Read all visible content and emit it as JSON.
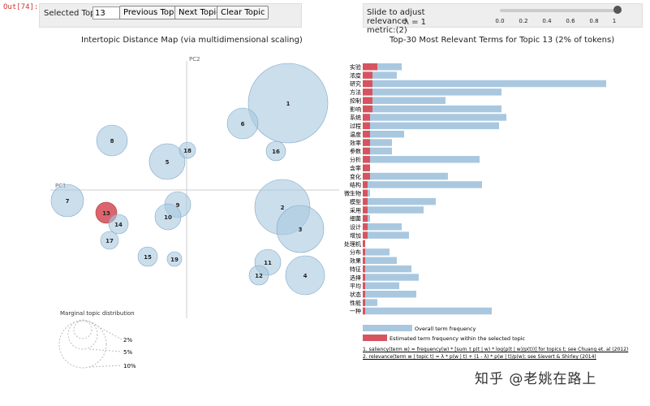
{
  "out_label": "Out[74]:",
  "controls": {
    "selected_topic_label": "Selected Topic:",
    "selected_topic_value": "13",
    "prev_label": "Previous Topic",
    "next_label": "Next Topic",
    "clear_label": "Clear Topic"
  },
  "slider": {
    "text_line1": "Slide to adjust relevance",
    "text_line2": "metric:(2)",
    "lambda_text": "λ = 1",
    "value": 1,
    "ticks": [
      "0.0",
      "0.2",
      "0.4",
      "0.6",
      "0.8",
      "1"
    ]
  },
  "left_panel": {
    "title": "Intertopic Distance Map (via multidimensional scaling)",
    "pc1_label": "PC1",
    "pc2_label": "PC2",
    "marginal_title": "Marginal topic distribution",
    "marginal_labels": [
      "2%",
      "5%",
      "10%"
    ],
    "selected_color": "#d6545f",
    "bubble_color": "#a9c8e0",
    "topics": [
      {
        "id": "1",
        "selected": false
      },
      {
        "id": "2",
        "selected": false
      },
      {
        "id": "3",
        "selected": false
      },
      {
        "id": "4",
        "selected": false
      },
      {
        "id": "5",
        "selected": false
      },
      {
        "id": "6",
        "selected": false
      },
      {
        "id": "7",
        "selected": false
      },
      {
        "id": "8",
        "selected": false
      },
      {
        "id": "9",
        "selected": false
      },
      {
        "id": "10",
        "selected": false
      },
      {
        "id": "11",
        "selected": false
      },
      {
        "id": "12",
        "selected": false
      },
      {
        "id": "13",
        "selected": true
      },
      {
        "id": "14",
        "selected": false
      },
      {
        "id": "15",
        "selected": false
      },
      {
        "id": "16",
        "selected": false
      },
      {
        "id": "17",
        "selected": false
      },
      {
        "id": "18",
        "selected": false
      },
      {
        "id": "19",
        "selected": false
      }
    ]
  },
  "chart_data": {
    "type": "bar",
    "title": "Top-30 Most Relevant Terms for Topic 13 (2% of tokens)",
    "categories": [
      "实验",
      "浓度",
      "研究",
      "方法",
      "控制",
      "影响",
      "系统",
      "过程",
      "温度",
      "效率",
      "参数",
      "分析",
      "含率",
      "变化",
      "结构",
      "微生物",
      "模型",
      "采用",
      "细菌",
      "设计",
      "增加",
      "处理机",
      "分布",
      "效果",
      "特征",
      "选择",
      "平均",
      "状态",
      "性能",
      "一种"
    ],
    "series": [
      {
        "name": "Overall term frequency",
        "color": "#a9c8e0",
        "values": [
          0.16,
          0.14,
          1.0,
          0.57,
          0.34,
          0.57,
          0.59,
          0.56,
          0.17,
          0.12,
          0.12,
          0.48,
          0.03,
          0.35,
          0.49,
          0.03,
          0.3,
          0.25,
          0.03,
          0.16,
          0.19,
          0.01,
          0.11,
          0.14,
          0.2,
          0.23,
          0.15,
          0.22,
          0.06,
          0.53
        ]
      },
      {
        "name": "Estimated term frequency within the selected topic",
        "color": "#d6545f",
        "values": [
          0.06,
          0.04,
          0.04,
          0.04,
          0.04,
          0.04,
          0.03,
          0.03,
          0.03,
          0.03,
          0.03,
          0.03,
          0.03,
          0.03,
          0.02,
          0.02,
          0.02,
          0.02,
          0.02,
          0.02,
          0.02,
          0.01,
          0.01,
          0.01,
          0.01,
          0.01,
          0.01,
          0.01,
          0.01,
          0.01
        ]
      }
    ],
    "legend": [
      "Overall term frequency",
      "Estimated term frequency within the selected topic"
    ]
  },
  "refs": {
    "line1": "1. saliency(term w) = frequency(w) * [sum_t p(t | w) * log(p(t | w)/p(t))] for topics t; see Chuang et. al (2012)",
    "line2": "2. relevance(term w | topic t) = λ * p(w | t) + (1 - λ) * p(w | t)/p(w); see Sievert & Shirley (2014)"
  },
  "watermark": "知乎 @老姚在路上"
}
